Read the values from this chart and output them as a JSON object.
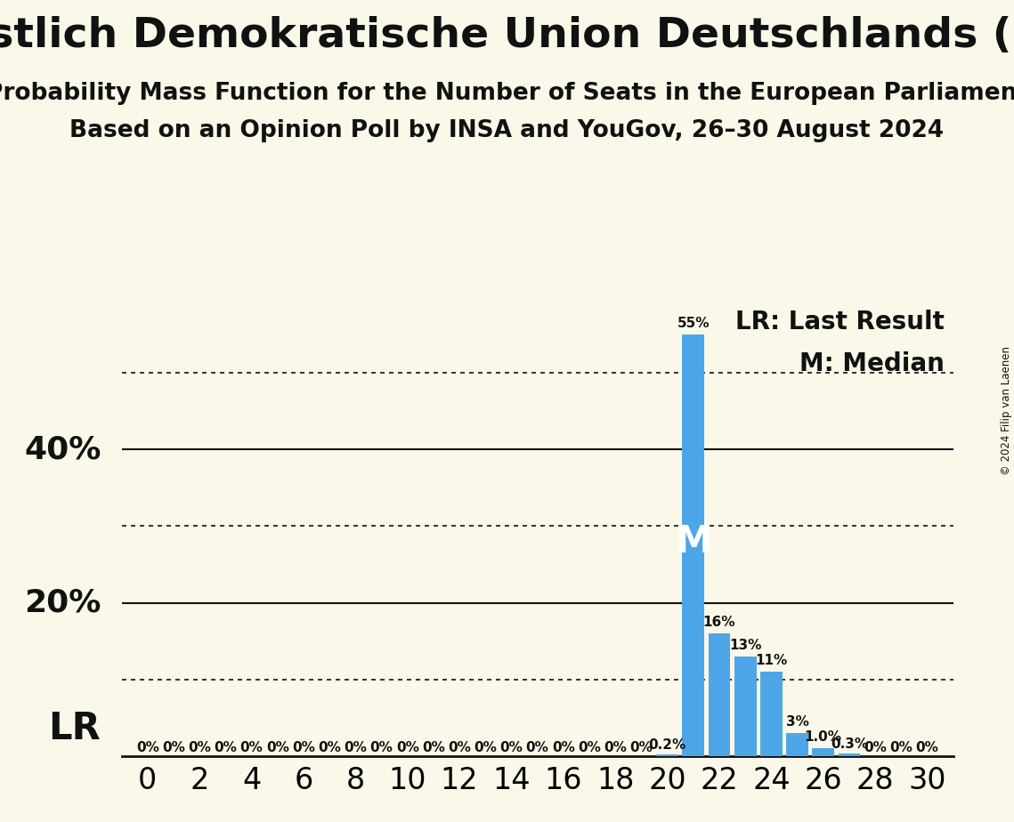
{
  "title": "Christlich Demokratische Union Deutschlands (EPP)",
  "subtitle1": "Probability Mass Function for the Number of Seats in the European Parliament",
  "subtitle2": "Based on an Opinion Poll by INSA and YouGov, 26–30 August 2024",
  "copyright": "© 2024 Filip van Laenen",
  "background_color": "#faf8e8",
  "bar_color": "#4da6e8",
  "legend_lr": "LR: Last Result",
  "legend_m": "M: Median",
  "lr_label": "LR",
  "median_label": "M",
  "lr_seat": 20,
  "median_seat": 21,
  "x_min": -1,
  "x_max": 31,
  "y_max": 60,
  "seats": [
    0,
    1,
    2,
    3,
    4,
    5,
    6,
    7,
    8,
    9,
    10,
    11,
    12,
    13,
    14,
    15,
    16,
    17,
    18,
    19,
    20,
    21,
    22,
    23,
    24,
    25,
    26,
    27,
    28,
    29,
    30
  ],
  "probabilities": [
    0,
    0,
    0,
    0,
    0,
    0,
    0,
    0,
    0,
    0,
    0,
    0,
    0,
    0,
    0,
    0,
    0,
    0,
    0,
    0,
    0.2,
    55,
    16,
    13,
    11,
    3,
    1.0,
    0.3,
    0,
    0,
    0
  ],
  "bar_labels": [
    "0%",
    "0%",
    "0%",
    "0%",
    "0%",
    "0%",
    "0%",
    "0%",
    "0%",
    "0%",
    "0%",
    "0%",
    "0%",
    "0%",
    "0%",
    "0%",
    "0%",
    "0%",
    "0%",
    "0%",
    "0.2%",
    "55%",
    "16%",
    "13%",
    "11%",
    "3%",
    "1.0%",
    "0.3%",
    "0%",
    "0%",
    "0%"
  ],
  "show_label_threshold": 0,
  "dotted_yticks": [
    10,
    30,
    50
  ],
  "solid_yticks": [
    20,
    40
  ],
  "ylabel_values": [
    20,
    40
  ],
  "ylabel_texts": [
    "20%",
    "40%"
  ],
  "title_fontsize": 34,
  "subtitle_fontsize": 19,
  "axis_tick_fontsize": 24,
  "bar_label_fontsize": 11,
  "legend_fontsize": 20,
  "lr_m_fontsize": 30,
  "ylabel_fontsize": 26
}
